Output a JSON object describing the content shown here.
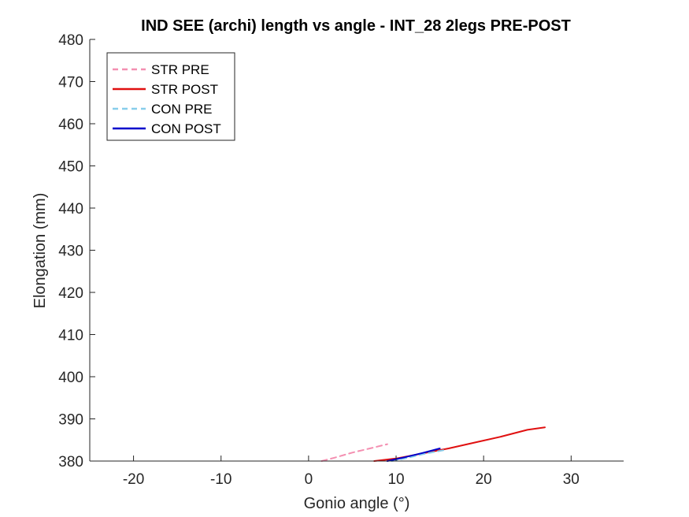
{
  "chart_data": {
    "type": "line",
    "title": "IND SEE (archi) length vs angle - INT_28 2legs PRE-POST",
    "xlabel": "Gonio angle (°)",
    "ylabel": "Elongation (mm)",
    "xlim": [
      -25,
      36
    ],
    "ylim": [
      380,
      480
    ],
    "xticks": [
      -20,
      -10,
      0,
      10,
      20,
      30
    ],
    "yticks": [
      380,
      390,
      400,
      410,
      420,
      430,
      440,
      450,
      460,
      470,
      480
    ],
    "grid": false,
    "legend_position": "top-left",
    "series": [
      {
        "name": "STR PRE",
        "color": "#f48fb1",
        "dash": "dashed",
        "x": [
          1.5,
          3,
          5,
          7,
          9
        ],
        "y": [
          380,
          380.8,
          382,
          383,
          384
        ]
      },
      {
        "name": "STR POST",
        "color": "#e01010",
        "dash": "solid",
        "x": [
          7.5,
          10,
          13,
          16,
          19,
          22,
          25,
          27
        ],
        "y": [
          380,
          380.6,
          381.8,
          383,
          384.4,
          385.8,
          387.4,
          388
        ]
      },
      {
        "name": "CON PRE",
        "color": "#87ceeb",
        "dash": "dashed",
        "x": [
          9.5,
          11,
          13,
          15.5
        ],
        "y": [
          380,
          380.6,
          381.6,
          382.6
        ]
      },
      {
        "name": "CON POST",
        "color": "#0000cc",
        "dash": "solid",
        "x": [
          9,
          11,
          13,
          15
        ],
        "y": [
          380,
          380.9,
          381.9,
          383
        ]
      }
    ]
  }
}
